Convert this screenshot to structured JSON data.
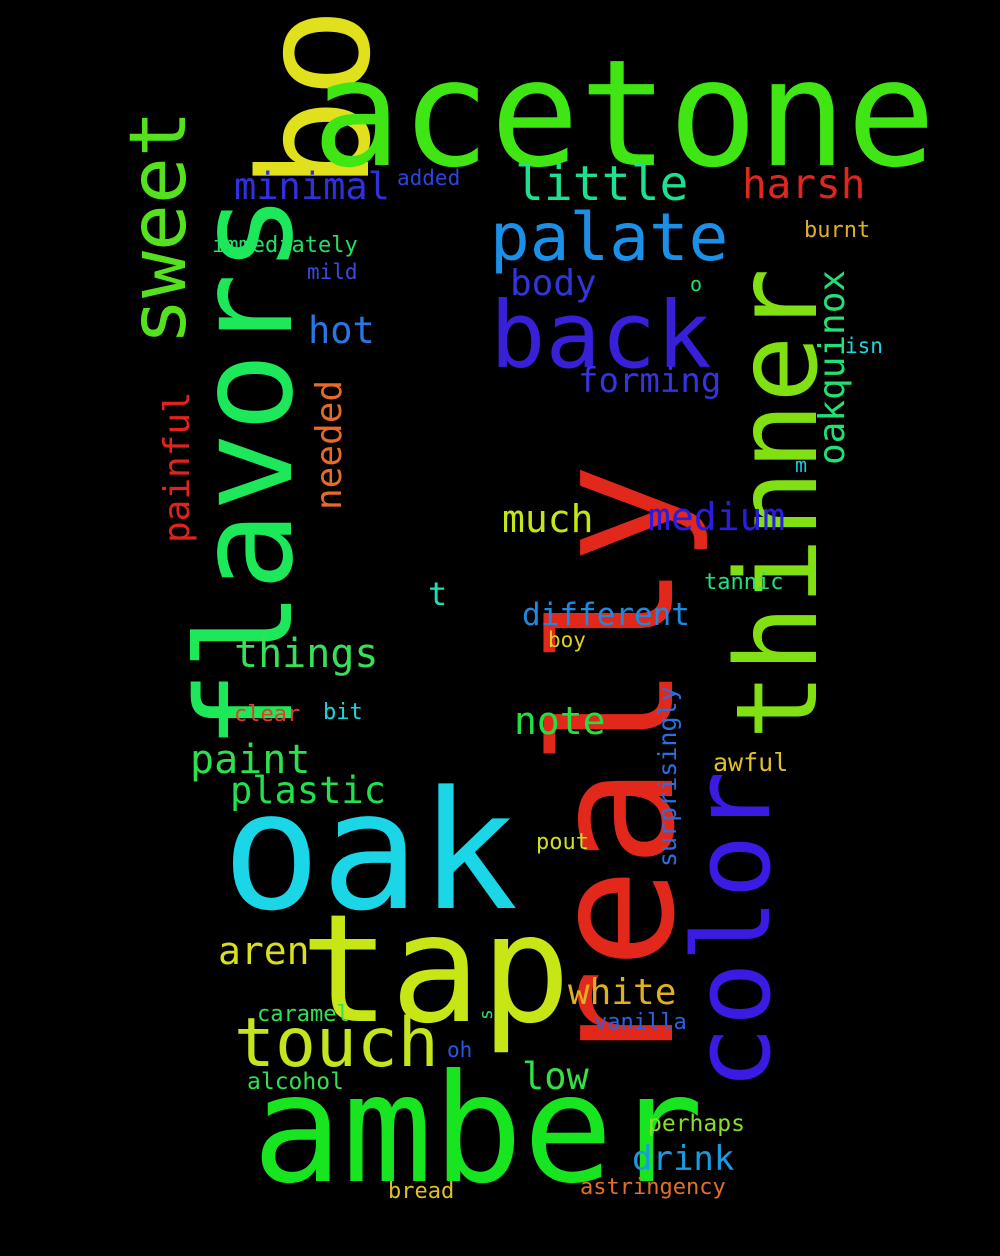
{
  "words": [
    {
      "text": "booze",
      "color": "#e0e01c"
    },
    {
      "text": "really",
      "color": "#e1281b"
    },
    {
      "text": "acetone",
      "color": "#40e514"
    },
    {
      "text": "flavors",
      "color": "#1de85a"
    },
    {
      "text": "thinner",
      "color": "#80e012"
    },
    {
      "text": "oak",
      "color": "#1ad6e6"
    },
    {
      "text": "color",
      "color": "#3a1be4"
    },
    {
      "text": "amber",
      "color": "#17e520"
    },
    {
      "text": "tap",
      "color": "#c8e616"
    },
    {
      "text": "back",
      "color": "#3820d8"
    },
    {
      "text": "sweet",
      "color": "#55e21e"
    },
    {
      "text": "palate",
      "color": "#1a90e8"
    },
    {
      "text": "touch",
      "color": "#c2e51e"
    },
    {
      "text": "little",
      "color": "#1de090"
    },
    {
      "text": "harsh",
      "color": "#e0261e"
    },
    {
      "text": "minimal",
      "color": "#3130de"
    },
    {
      "text": "oakquinox",
      "color": "#22e076"
    },
    {
      "text": "painful",
      "color": "#e0231c"
    },
    {
      "text": "needed",
      "color": "#e86a28"
    },
    {
      "text": "hot",
      "color": "#2a76e2"
    },
    {
      "text": "body",
      "color": "#3235d8"
    },
    {
      "text": "forming",
      "color": "#3434e0"
    },
    {
      "text": "much",
      "color": "#c5e614"
    },
    {
      "text": "medium",
      "color": "#2a1ce2"
    },
    {
      "text": "things",
      "color": "#38e05a"
    },
    {
      "text": "different",
      "color": "#1c8ae0"
    },
    {
      "text": "note",
      "color": "#22e040"
    },
    {
      "text": "paint",
      "color": "#2ee04c"
    },
    {
      "text": "plastic",
      "color": "#22e04e"
    },
    {
      "text": "aren",
      "color": "#d8e01c"
    },
    {
      "text": "white",
      "color": "#e0b023"
    },
    {
      "text": "low",
      "color": "#34e044"
    },
    {
      "text": "drink",
      "color": "#1a9ae0"
    },
    {
      "text": "surprisingly",
      "color": "#2a6ee0"
    },
    {
      "text": "awful",
      "color": "#e0c022"
    },
    {
      "text": "added",
      "color": "#2e44e0"
    },
    {
      "text": "burnt",
      "color": "#e0b024"
    },
    {
      "text": "immediately",
      "color": "#22e064"
    },
    {
      "text": "mild",
      "color": "#3a4ae0"
    },
    {
      "text": "o",
      "color": "#22e062"
    },
    {
      "text": "isn",
      "color": "#1ad8e0"
    },
    {
      "text": "m",
      "color": "#1ac8e0"
    },
    {
      "text": "t",
      "color": "#1ae0b8"
    },
    {
      "text": "tannic",
      "color": "#22e07a"
    },
    {
      "text": "boy",
      "color": "#e0d022"
    },
    {
      "text": "clear",
      "color": "#e0402a"
    },
    {
      "text": "bit",
      "color": "#1ad8e0"
    },
    {
      "text": "pout",
      "color": "#d0e01e"
    },
    {
      "text": "caramel",
      "color": "#32e056"
    },
    {
      "text": "s",
      "color": "#22e06a"
    },
    {
      "text": "vanilla",
      "color": "#2a62e0"
    },
    {
      "text": "oh",
      "color": "#2a58e0"
    },
    {
      "text": "alcohol",
      "color": "#32e052"
    },
    {
      "text": "perhaps",
      "color": "#88e024"
    },
    {
      "text": "bread",
      "color": "#e0c024"
    },
    {
      "text": "astringency",
      "color": "#e0702a"
    }
  ]
}
